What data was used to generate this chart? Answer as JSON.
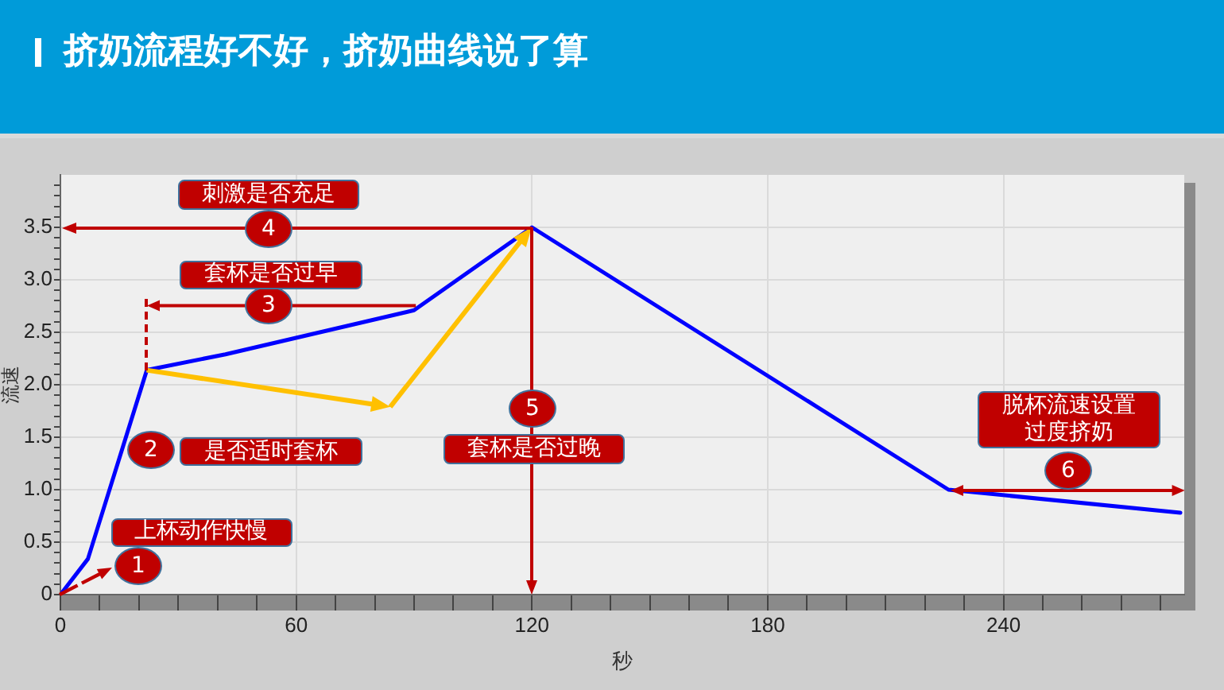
{
  "chart_data": {
    "type": "line",
    "title": "挤奶流程好不好，挤奶曲线说了算",
    "xlabel": "秒",
    "ylabel": "流速",
    "series": [
      {
        "color": "#0000ff",
        "x": [
          0,
          7,
          22,
          42,
          90,
          120,
          226,
          285
        ],
        "values": [
          0,
          0.34,
          2.14,
          2.29,
          2.71,
          3.5,
          1.0,
          0.78
        ]
      }
    ],
    "xlim": [
      0,
      286
    ],
    "xticks": [
      0,
      {
        "value": 10,
        "label": null
      },
      {
        "value": 20,
        "label": null
      },
      {
        "value": 30,
        "label": null
      },
      {
        "value": 40,
        "label": null
      },
      {
        "value": 50,
        "label": null
      },
      60,
      {
        "value": 70,
        "label": null
      },
      {
        "value": 80,
        "label": null
      },
      {
        "value": 90,
        "label": null
      },
      {
        "value": 100,
        "label": null
      },
      {
        "value": 110,
        "label": null
      },
      120,
      {
        "value": 130,
        "label": null
      },
      {
        "value": 140,
        "label": null
      },
      {
        "value": 150,
        "label": null
      },
      {
        "value": 160,
        "label": null
      },
      {
        "value": 170,
        "label": null
      },
      180,
      {
        "value": 190,
        "label": null
      },
      {
        "value": 200,
        "label": null
      },
      {
        "value": 210,
        "label": null
      },
      {
        "value": 220,
        "label": null
      },
      {
        "value": 230,
        "label": null
      },
      240,
      {
        "value": 250,
        "label": null
      },
      {
        "value": 260,
        "label": null
      },
      {
        "value": 270,
        "label": null
      },
      {
        "value": 280,
        "label": null
      }
    ],
    "ylim": [
      0,
      4
    ],
    "yticks": [
      0,
      {
        "value": 0.1,
        "label": null
      },
      {
        "value": 0.2,
        "label": null
      },
      {
        "value": 0.3,
        "label": null
      },
      {
        "value": 0.4,
        "label": null
      },
      0.5,
      {
        "value": 0.6,
        "label": null
      },
      {
        "value": 0.7,
        "label": null
      },
      {
        "value": 0.8,
        "label": null
      },
      {
        "value": 0.9,
        "label": null
      },
      {
        "value": 1,
        "label": "1.0"
      },
      {
        "value": 1.1,
        "label": null
      },
      {
        "value": 1.2,
        "label": null
      },
      {
        "value": 1.3,
        "label": null
      },
      {
        "value": 1.4,
        "label": null
      },
      1.5,
      {
        "value": 1.6,
        "label": null
      },
      {
        "value": 1.7,
        "label": null
      },
      {
        "value": 1.8,
        "label": null
      },
      {
        "value": 1.9,
        "label": null
      },
      {
        "value": 2,
        "label": "2.0"
      },
      {
        "value": 2.1,
        "label": null
      },
      {
        "value": 2.2,
        "label": null
      },
      {
        "value": 2.3,
        "label": null
      },
      {
        "value": 2.4,
        "label": null
      },
      2.5,
      {
        "value": 2.6,
        "label": null
      },
      {
        "value": 2.7,
        "label": null
      },
      {
        "value": 2.8,
        "label": null
      },
      {
        "value": 2.9,
        "label": null
      },
      {
        "value": 3,
        "label": "3.0"
      },
      {
        "value": 3.1,
        "label": null
      },
      {
        "value": 3.2,
        "label": null
      },
      {
        "value": 3.3,
        "label": null
      },
      {
        "value": 3.4,
        "label": null
      },
      3.5,
      {
        "value": 3.6,
        "label": null
      },
      {
        "value": 3.7,
        "label": null
      },
      {
        "value": 3.8,
        "label": null
      },
      {
        "value": 3.9,
        "label": null
      }
    ],
    "grid": true,
    "annotations": [
      "1",
      "上杯动作快慢",
      "2",
      "是否适时套杯",
      "3",
      "套杯是否过早",
      "4",
      "刺激是否充足",
      "5",
      "套杯是否过晚",
      "6",
      "脱杯流速设置",
      "过度挤奶"
    ]
  }
}
